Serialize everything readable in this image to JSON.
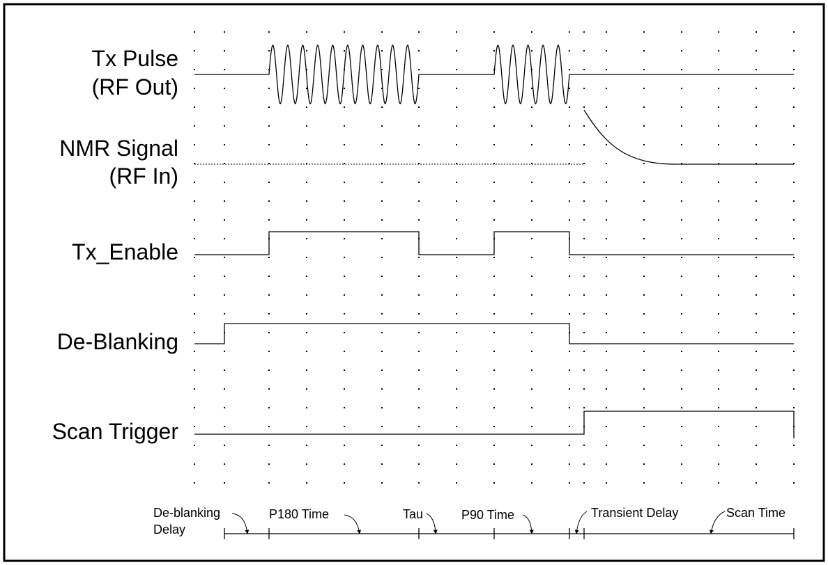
{
  "signals": [
    {
      "lines": [
        "Tx Pulse",
        "(RF Out)"
      ]
    },
    {
      "lines": [
        "NMR Signal",
        "(RF In)"
      ]
    },
    {
      "lines": [
        "Tx_Enable"
      ]
    },
    {
      "lines": [
        "De-Blanking"
      ]
    },
    {
      "lines": [
        "Scan Trigger"
      ]
    }
  ],
  "intervals": [
    {
      "lines": [
        "De-blanking",
        "Delay"
      ]
    },
    {
      "lines": [
        "P180 Time"
      ]
    },
    {
      "lines": [
        "Tau"
      ]
    },
    {
      "lines": [
        "P90 Time"
      ]
    },
    {
      "lines": [
        "Transient Delay"
      ]
    },
    {
      "lines": [
        "Scan Time"
      ]
    }
  ]
}
